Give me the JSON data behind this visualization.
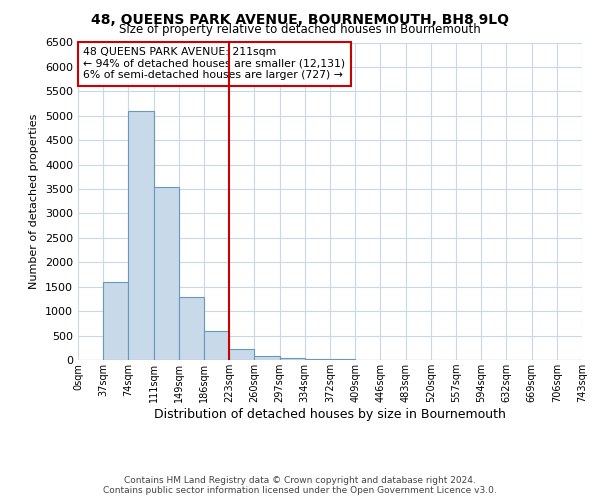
{
  "title": "48, QUEENS PARK AVENUE, BOURNEMOUTH, BH8 9LQ",
  "subtitle": "Size of property relative to detached houses in Bournemouth",
  "xlabel": "Distribution of detached houses by size in Bournemouth",
  "ylabel": "Number of detached properties",
  "bin_labels": [
    "0sqm",
    "37sqm",
    "74sqm",
    "111sqm",
    "149sqm",
    "186sqm",
    "223sqm",
    "260sqm",
    "297sqm",
    "334sqm",
    "372sqm",
    "409sqm",
    "446sqm",
    "483sqm",
    "520sqm",
    "557sqm",
    "594sqm",
    "632sqm",
    "669sqm",
    "706sqm",
    "743sqm"
  ],
  "bar_values": [
    0,
    1600,
    5100,
    3550,
    1300,
    600,
    220,
    80,
    50,
    25,
    15,
    10,
    8,
    5,
    4,
    3,
    2,
    1,
    1,
    0
  ],
  "bar_color": "#c8d9ea",
  "bar_edge_color": "#6699bb",
  "vline_color": "#cc0000",
  "vline_x_index": 6,
  "property_label": "48 QUEENS PARK AVENUE: 211sqm",
  "annotation_line1": "← 94% of detached houses are smaller (12,131)",
  "annotation_line2": "6% of semi-detached houses are larger (727) →",
  "annotation_box_color": "#ffffff",
  "annotation_box_edge": "#cc0000",
  "ylim": [
    0,
    6500
  ],
  "yticks": [
    0,
    500,
    1000,
    1500,
    2000,
    2500,
    3000,
    3500,
    4000,
    4500,
    5000,
    5500,
    6000,
    6500
  ],
  "footer_line1": "Contains HM Land Registry data © Crown copyright and database right 2024.",
  "footer_line2": "Contains public sector information licensed under the Open Government Licence v3.0.",
  "bg_color": "#ffffff",
  "grid_color": "#c8d8e8"
}
